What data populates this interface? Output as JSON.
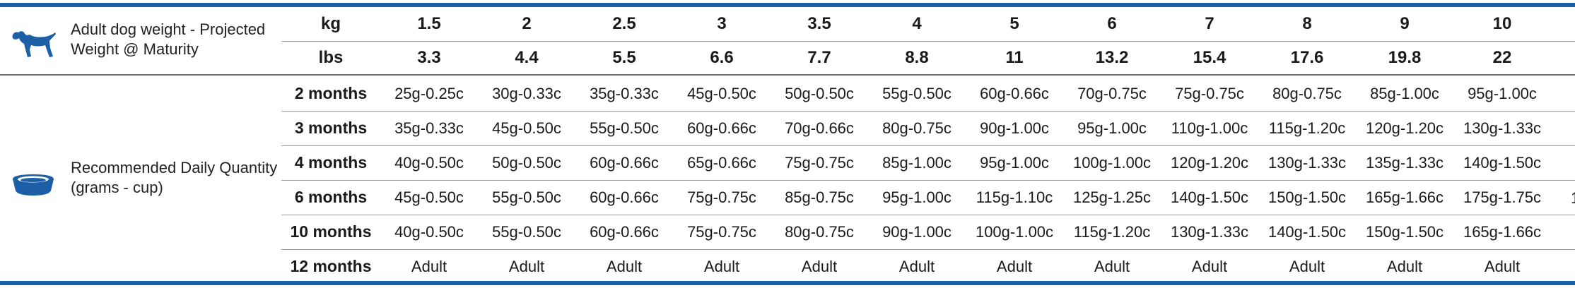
{
  "header_section": {
    "caption_line1": "Adult dog weight - Projected",
    "caption_line2": "Weight @ Maturity",
    "icon": "dog-silhouette-icon"
  },
  "body_section": {
    "caption_line1": "Recommended Daily Quantity",
    "caption_line2": "(grams - cup)",
    "icon": "food-bowl-icon"
  },
  "colors": {
    "accent": "#1d5fa6",
    "text": "#1a1a1a"
  },
  "header_rows": [
    {
      "label": "kg",
      "values": [
        "1.5",
        "2",
        "2.5",
        "3",
        "3.5",
        "4",
        "5",
        "6",
        "7",
        "8",
        "9",
        "10"
      ]
    },
    {
      "label": "lbs",
      "values": [
        "3.3",
        "4.4",
        "5.5",
        "6.6",
        "7.7",
        "8.8",
        "11",
        "13.2",
        "15.4",
        "17.6",
        "19.8",
        "22"
      ]
    }
  ],
  "rows": [
    {
      "label": "2 months",
      "values": [
        "25g-0.25c",
        "30g-0.33c",
        "35g-0.33c",
        "45g-0.50c",
        "50g-0.50c",
        "55g-0.50c",
        "60g-0.66c",
        "70g-0.75c",
        "75g-0.75c",
        "80g-0.75c",
        "85g-1.00c",
        "95g-1.00c"
      ]
    },
    {
      "label": "3 months",
      "values": [
        "35g-0.33c",
        "45g-0.50c",
        "55g-0.50c",
        "60g-0.66c",
        "70g-0.66c",
        "80g-0.75c",
        "90g-1.00c",
        "95g-1.00c",
        "110g-1.00c",
        "115g-1.20c",
        "120g-1.20c",
        "130g-1.33c"
      ]
    },
    {
      "label": "4 months",
      "values": [
        "40g-0.50c",
        "50g-0.50c",
        "60g-0.66c",
        "65g-0.66c",
        "75g-0.75c",
        "85g-1.00c",
        "95g-1.00c",
        "100g-1.00c",
        "120g-1.20c",
        "130g-1.33c",
        "135g-1.33c",
        "140g-1.50c"
      ]
    },
    {
      "label": "6 months",
      "values": [
        "45g-0.50c",
        "55g-0.50c",
        "60g-0.66c",
        "75g-0.75c",
        "85g-0.75c",
        "95g-1.00c",
        "115g-1.10c",
        "125g-1.25c",
        "140g-1.50c",
        "150g-1.50c",
        "165g-1.66c",
        "175g-1.75c"
      ]
    },
    {
      "label": "10 months",
      "values": [
        "40g-0.50c",
        "55g-0.50c",
        "60g-0.66c",
        "75g-0.75c",
        "80g-0.75c",
        "90g-1.00c",
        "100g-1.00c",
        "115g-1.20c",
        "130g-1.33c",
        "140g-1.50c",
        "150g-1.50c",
        "165g-1.66c"
      ]
    },
    {
      "label": "12 months",
      "values": [
        "Adult",
        "Adult",
        "Adult",
        "Adult",
        "Adult",
        "Adult",
        "Adult",
        "Adult",
        "Adult",
        "Adult",
        "Adult",
        "Adult"
      ]
    }
  ],
  "clipped_edge_text": "1"
}
